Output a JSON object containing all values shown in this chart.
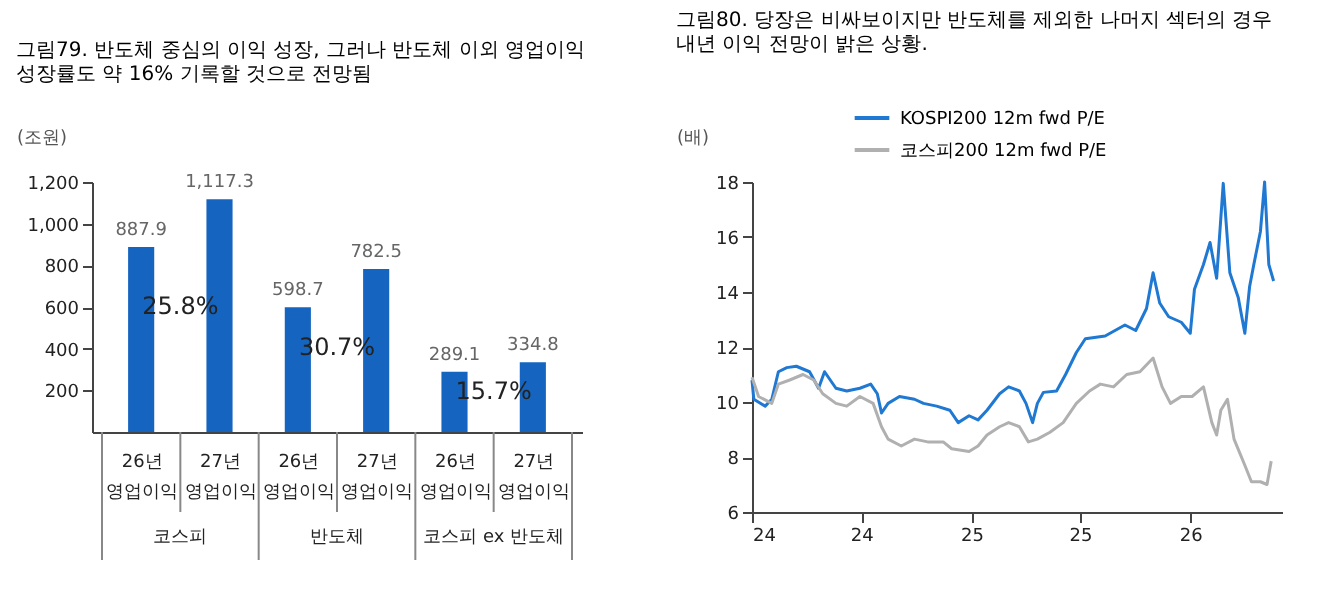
{
  "chart_data": [
    {
      "type": "bar",
      "title": "그림79. 반도체 중심의 이익 성장, 그러나 반도체 이외 영업이익\n성장률도 약 16% 기록할 것으로 전망됨",
      "ylabel": "(조원)",
      "categories": [
        "26년 영업이익",
        "27년 영업이익",
        "26년 영업이익",
        "27년 영업이익",
        "26년 영업이익",
        "27년 영업이익"
      ],
      "series": [
        {
          "color": "#1565c0",
          "values": [
            887.9,
            1117.3,
            598.7,
            782.5,
            289.1,
            334.8
          ],
          "value_labels": [
            "887.9",
            "1,117.3",
            "598.7",
            "782.5",
            "289.1",
            "334.8"
          ]
        }
      ],
      "ylim": [
        0,
        1200
      ],
      "yticks": [
        200,
        400,
        600,
        800,
        {
          "value": 1000,
          "label": "1,000"
        },
        {
          "value": 1200,
          "label": "1,200"
        }
      ],
      "annotations": [
        "25.8%",
        "30.7%",
        "15.7%",
        "코스피",
        "반도체",
        "코스피 ex 반도체"
      ],
      "grid": false
    },
    {
      "type": "line",
      "title": "그림80. 당장은 비싸보이지만 반도체를 제외한 나머지 섹터의 경우\n내년 이익 전망이 밝은 상황.",
      "ylabel": "(배)",
      "legend": "top left",
      "grid": false,
      "marker": "none",
      "line_style": "solid",
      "xlim": [
        "2024-01-01",
        "2026-06-03"
      ],
      "xticks": [
        {
          "value": "2024-01-01",
          "label": "24"
        },
        {
          "value": "2024-07-01",
          "label": "24"
        },
        {
          "value": "2025-01-01",
          "label": "25"
        },
        {
          "value": "2025-07-01",
          "label": "25"
        },
        {
          "value": "2026-01-01",
          "label": "26"
        }
      ],
      "ylim": [
        6,
        18
      ],
      "yticks": [
        6,
        8,
        10,
        12,
        14,
        16,
        18
      ],
      "series": [
        {
          "name": "KOSPI200 12m fwd P/E",
          "color": "#1f78d1",
          "x": [
            "2024-01-01",
            "2024-01-04",
            "2024-01-23",
            "2024-02-03",
            "2024-02-14",
            "2024-02-28",
            "2024-03-15",
            "2024-04-06",
            "2024-04-21",
            "2024-05-01",
            "2024-05-20",
            "2024-06-07",
            "2024-06-29",
            "2024-07-17",
            "2024-07-28",
            "2024-08-04",
            "2024-08-15",
            "2024-09-03",
            "2024-09-28",
            "2024-10-13",
            "2024-11-04",
            "2024-11-26",
            "2024-12-10",
            "2024-12-28",
            "2025-01-12",
            "2025-01-27",
            "2025-02-17",
            "2025-03-04",
            "2025-03-22",
            "2025-04-02",
            "2025-04-13",
            "2025-04-21",
            "2025-05-01",
            "2025-05-23",
            "2025-06-07",
            "2025-06-25",
            "2025-07-10",
            "2025-08-12",
            "2025-09-14",
            "2025-10-02",
            "2025-10-20",
            "2025-10-31",
            "2025-11-11",
            "2025-11-26",
            "2025-12-17",
            "2026-01-01",
            "2026-01-08",
            "2026-01-23",
            "2026-02-03",
            "2026-02-14",
            "2026-02-25",
            "2026-03-08",
            "2026-03-22",
            "2026-04-02",
            "2026-04-10",
            "2026-04-17",
            "2026-04-28",
            "2026-05-05",
            "2026-05-12",
            "2026-05-20"
          ],
          "values": [
            10.8,
            10.1,
            9.85,
            10.1,
            11.1,
            11.25,
            11.3,
            11.1,
            10.5,
            11.1,
            10.5,
            10.4,
            10.5,
            10.65,
            10.3,
            9.6,
            9.95,
            10.2,
            10.1,
            9.95,
            9.85,
            9.7,
            9.25,
            9.5,
            9.35,
            9.7,
            10.3,
            10.55,
            10.4,
            9.95,
            9.25,
            9.95,
            10.35,
            10.4,
            11.0,
            11.8,
            12.3,
            12.4,
            12.8,
            12.6,
            13.4,
            14.7,
            13.6,
            13.1,
            12.9,
            12.5,
            14.1,
            15.0,
            15.8,
            14.5,
            17.95,
            14.7,
            13.8,
            12.5,
            14.2,
            15.0,
            16.2,
            18.0,
            15.0,
            14.4
          ]
        },
        {
          "name": "코스피200 12m fwd P/E",
          "color": "#b0b0b0",
          "x": [
            "2024-01-01",
            "2024-01-12",
            "2024-02-03",
            "2024-02-14",
            "2024-03-04",
            "2024-03-26",
            "2024-04-13",
            "2024-04-28",
            "2024-05-20",
            "2024-06-07",
            "2024-06-29",
            "2024-07-21",
            "2024-08-04",
            "2024-08-15",
            "2024-09-06",
            "2024-09-28",
            "2024-10-20",
            "2024-11-15",
            "2024-11-29",
            "2024-12-28",
            "2025-01-12",
            "2025-01-27",
            "2025-02-17",
            "2025-03-04",
            "2025-03-22",
            "2025-04-06",
            "2025-04-21",
            "2025-05-12",
            "2025-06-03",
            "2025-06-25",
            "2025-07-17",
            "2025-08-04",
            "2025-08-26",
            "2025-09-17",
            "2025-10-09",
            "2025-10-31",
            "2025-11-15",
            "2025-11-29",
            "2025-12-17",
            "2026-01-04",
            "2026-01-23",
            "2026-02-06",
            "2026-02-14",
            "2026-02-21",
            "2026-03-04",
            "2026-03-15",
            "2026-04-02",
            "2026-04-13",
            "2026-04-28",
            "2026-05-09",
            "2026-05-16"
          ],
          "values": [
            10.9,
            10.2,
            9.95,
            10.65,
            10.8,
            11.0,
            10.8,
            10.3,
            9.95,
            9.85,
            10.2,
            9.95,
            9.1,
            8.65,
            8.4,
            8.65,
            8.55,
            8.55,
            8.3,
            8.2,
            8.4,
            8.8,
            9.1,
            9.25,
            9.1,
            8.55,
            8.65,
            8.9,
            9.25,
            9.95,
            10.4,
            10.65,
            10.55,
            11.0,
            11.1,
            11.6,
            10.55,
            9.95,
            10.2,
            10.2,
            10.55,
            9.25,
            8.8,
            9.7,
            10.1,
            8.65,
            7.7,
            7.1,
            7.1,
            7.0,
            7.85
          ]
        }
      ]
    }
  ]
}
